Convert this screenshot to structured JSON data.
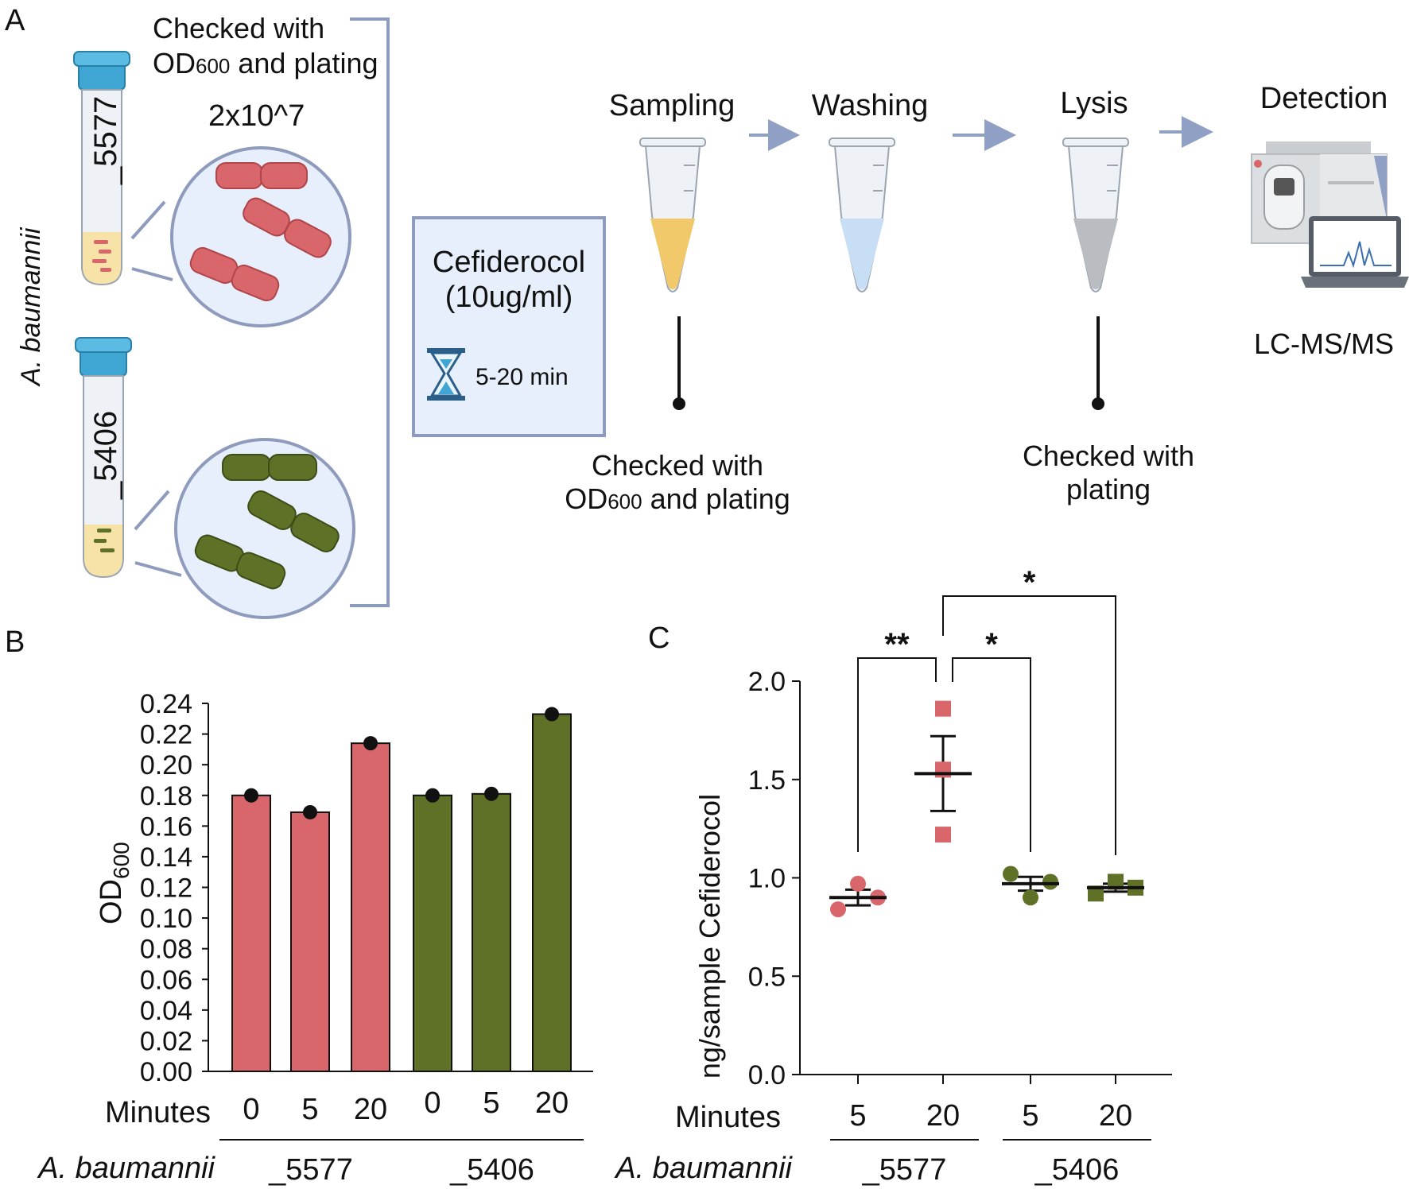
{
  "panel_a": {
    "label": "A",
    "organism": "A. baumannii",
    "strain_top": "_5577",
    "strain_bottom": "_5406",
    "check_top_line1": "Checked with",
    "check_top_line2_prefix": "OD",
    "check_top_line2_sub": "600",
    "check_top_line2_suffix": " and plating",
    "inoculum": "2x10^7",
    "drug_name": "Cefiderocol",
    "drug_conc": "(10ug/ml)",
    "time": "5-20 min",
    "steps": [
      "Sampling",
      "Washing",
      "Lysis",
      "Detection"
    ],
    "sampling_check_line1": "Checked with",
    "sampling_check_line2_prefix": "OD",
    "sampling_check_line2_sub": "600",
    "sampling_check_line2_suffix": " and plating",
    "lysis_check_line1": "Checked with",
    "lysis_check_line2": "plating",
    "instrument": "LC-MS/MS",
    "colors": {
      "red": "#d9666a",
      "green": "#5e7127",
      "cap": "#3fa6d3",
      "frame": "#8e9bbd",
      "box_fill": "#e6effb",
      "arrow": "#8fa0c4"
    }
  },
  "chart_data": [
    {
      "type": "bar",
      "panel_label": "B",
      "title": "",
      "ylabel_main": "OD",
      "ylabel_sub": "600",
      "xlabel": "Minutes",
      "group_label": "A. baumannii",
      "categories": [
        "0",
        "5",
        "20",
        "0",
        "5",
        "20"
      ],
      "groups": [
        {
          "name": "_5577",
          "members": [
            0,
            1,
            2
          ]
        },
        {
          "name": "_5406",
          "members": [
            3,
            4,
            5
          ]
        }
      ],
      "values": [
        0.18,
        0.169,
        0.214,
        0.18,
        0.181,
        0.233
      ],
      "bar_colors": [
        "#d9666a",
        "#d9666a",
        "#d9666a",
        "#5e7127",
        "#5e7127",
        "#5e7127"
      ],
      "ylim": [
        0,
        0.24
      ],
      "yticks": [
        "0.00",
        "0.02",
        "0.04",
        "0.06",
        "0.08",
        "0.10",
        "0.12",
        "0.14",
        "0.16",
        "0.18",
        "0.20",
        "0.22",
        "0.24"
      ]
    },
    {
      "type": "scatter",
      "panel_label": "C",
      "title": "",
      "ylabel": "ng/sample Cefiderocol",
      "xlabel": "Minutes",
      "group_label": "A. baumannii",
      "categories": [
        "5",
        "20",
        "5",
        "20"
      ],
      "groups": [
        {
          "name": "_5577",
          "members": [
            0,
            1
          ]
        },
        {
          "name": "_5406",
          "members": [
            2,
            3
          ]
        }
      ],
      "series": [
        {
          "name": "_5577 5 min",
          "marker": "circle",
          "color": "#d9666a",
          "points": [
            0.84,
            0.97,
            0.9
          ],
          "mean": 0.9,
          "sem": 0.04
        },
        {
          "name": "_5577 20 min",
          "marker": "square",
          "color": "#d9666a",
          "points": [
            1.86,
            1.55,
            1.22
          ],
          "mean": 1.53,
          "sem": 0.19
        },
        {
          "name": "_5406 5 min",
          "marker": "circle",
          "color": "#5e7127",
          "points": [
            1.02,
            0.9,
            0.98
          ],
          "mean": 0.97,
          "sem": 0.035
        },
        {
          "name": "_5406 20 min",
          "marker": "square",
          "color": "#5e7127",
          "points": [
            0.92,
            0.98,
            0.95
          ],
          "mean": 0.95,
          "sem": 0.02
        }
      ],
      "ylim": [
        0,
        2.0
      ],
      "yticks": [
        "0.0",
        "0.5",
        "1.0",
        "1.5",
        "2.0"
      ],
      "significance": [
        {
          "from": 0,
          "to": 1,
          "label": "**"
        },
        {
          "from": 1,
          "to": 2,
          "label": "*"
        },
        {
          "from": 1,
          "to": 3,
          "label": "*"
        }
      ]
    }
  ]
}
